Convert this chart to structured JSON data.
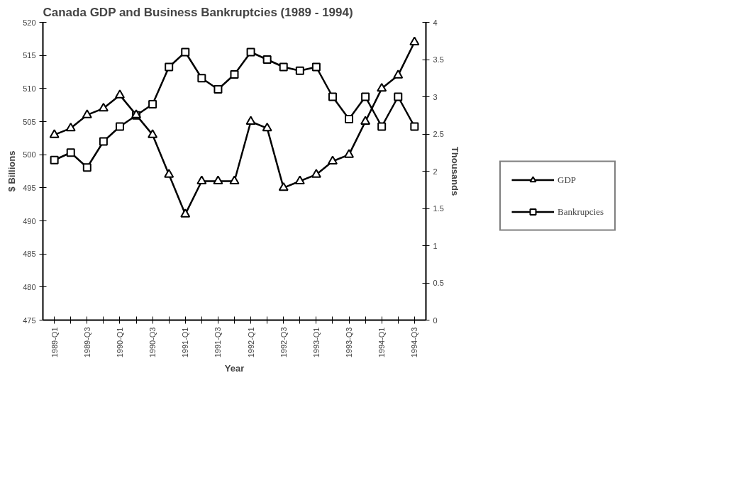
{
  "chart_data": {
    "type": "line",
    "title": "Canada GDP and Business Bankruptcies (1989 - 1994)",
    "xlabel": "Year",
    "ylabel": "$ Billions",
    "y2label": "Thousands",
    "categories": [
      "1989-Q1",
      null,
      "1989-Q3",
      null,
      "1990-Q1",
      null,
      "1990-Q3",
      null,
      "1991-Q1",
      null,
      "1991-Q3",
      null,
      "1992-Q1",
      null,
      "1992-Q3",
      null,
      "1993-Q1",
      null,
      "1993-Q3",
      null,
      "1994-Q1",
      null,
      "1994-Q3"
    ],
    "series": [
      {
        "name": "GDP",
        "color": "#000000",
        "marker": "triangle",
        "values": [
          503,
          504,
          506,
          507,
          509,
          506,
          503,
          497,
          491,
          496,
          496,
          496,
          505,
          504,
          495,
          496,
          497,
          499,
          500,
          505,
          510,
          512,
          517
        ]
      },
      {
        "name": "Bankrupcies",
        "color": "#000000",
        "marker": "square",
        "axis": "y2",
        "values": [
          2.15,
          2.25,
          2.05,
          2.4,
          2.6,
          2.75,
          2.9,
          3.4,
          3.6,
          3.25,
          3.1,
          3.3,
          3.6,
          3.5,
          3.4,
          3.35,
          3.4,
          3.0,
          2.7,
          3.0,
          2.6,
          3.0,
          2.6
        ]
      }
    ],
    "ylim": [
      475,
      520
    ],
    "yticks": [
      475,
      480,
      485,
      490,
      495,
      500,
      505,
      510,
      515,
      520
    ],
    "y2lim": [
      0,
      4
    ],
    "y2ticks": [
      0,
      0.5,
      1,
      1.5,
      2,
      2.5,
      3,
      3.5,
      4
    ],
    "grid": false,
    "legend": "right",
    "line_style": "solid"
  }
}
